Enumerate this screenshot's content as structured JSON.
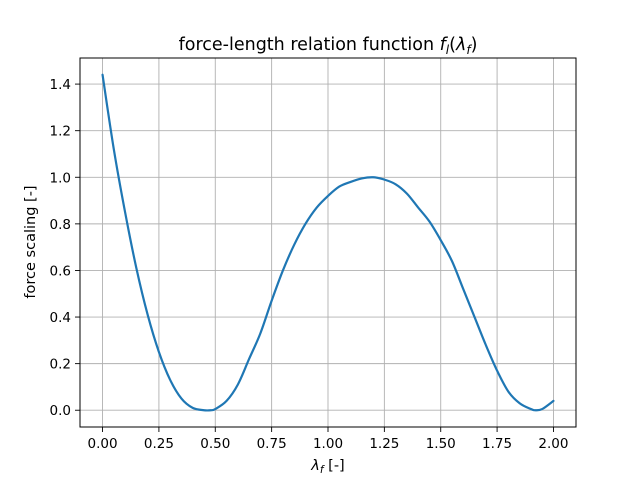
{
  "chart_data": {
    "type": "line",
    "title": "force-length relation function f_l(λ_f)",
    "title_parts": {
      "prefix": "force-length relation function ",
      "f": "f",
      "f_sub": "l",
      "open": "(",
      "lambda": "λ",
      "lambda_sub": "f",
      "close": ")"
    },
    "xlabel": "λ_f [-]",
    "xlabel_parts": {
      "lambda": "λ",
      "sub": "f",
      "unit": " [-]"
    },
    "ylabel": "force scaling [-]",
    "xlim": [
      -0.1,
      2.1
    ],
    "ylim": [
      -0.072,
      1.512
    ],
    "xticks": [
      0.0,
      0.25,
      0.5,
      0.75,
      1.0,
      1.25,
      1.5,
      1.75,
      2.0
    ],
    "xtick_labels": [
      "0.00",
      "0.25",
      "0.50",
      "0.75",
      "1.00",
      "1.25",
      "1.50",
      "1.75",
      "2.00"
    ],
    "yticks": [
      0.0,
      0.2,
      0.4,
      0.6,
      0.8,
      1.0,
      1.2,
      1.4
    ],
    "ytick_labels": [
      "0.0",
      "0.2",
      "0.4",
      "0.6",
      "0.8",
      "1.0",
      "1.2",
      "1.4"
    ],
    "grid": true,
    "color": "#1f77b4",
    "series": [
      {
        "x": [
          0.0,
          0.05,
          0.1,
          0.15,
          0.2,
          0.25,
          0.3,
          0.35,
          0.4,
          0.45,
          0.48,
          0.5,
          0.55,
          0.6,
          0.65,
          0.7,
          0.75,
          0.8,
          0.85,
          0.9,
          0.95,
          1.0,
          1.05,
          1.1,
          1.15,
          1.2,
          1.25,
          1.3,
          1.35,
          1.4,
          1.45,
          1.5,
          1.55,
          1.6,
          1.65,
          1.7,
          1.75,
          1.8,
          1.85,
          1.9,
          1.92,
          1.95,
          2.0
        ],
        "y": [
          1.44,
          1.12,
          0.85,
          0.61,
          0.41,
          0.25,
          0.13,
          0.05,
          0.01,
          0.0,
          0.0,
          0.005,
          0.04,
          0.11,
          0.22,
          0.33,
          0.47,
          0.6,
          0.71,
          0.8,
          0.87,
          0.92,
          0.96,
          0.98,
          0.995,
          1.0,
          0.99,
          0.97,
          0.93,
          0.87,
          0.81,
          0.73,
          0.64,
          0.52,
          0.4,
          0.28,
          0.17,
          0.08,
          0.03,
          0.005,
          0.0,
          0.005,
          0.04
        ]
      }
    ]
  }
}
